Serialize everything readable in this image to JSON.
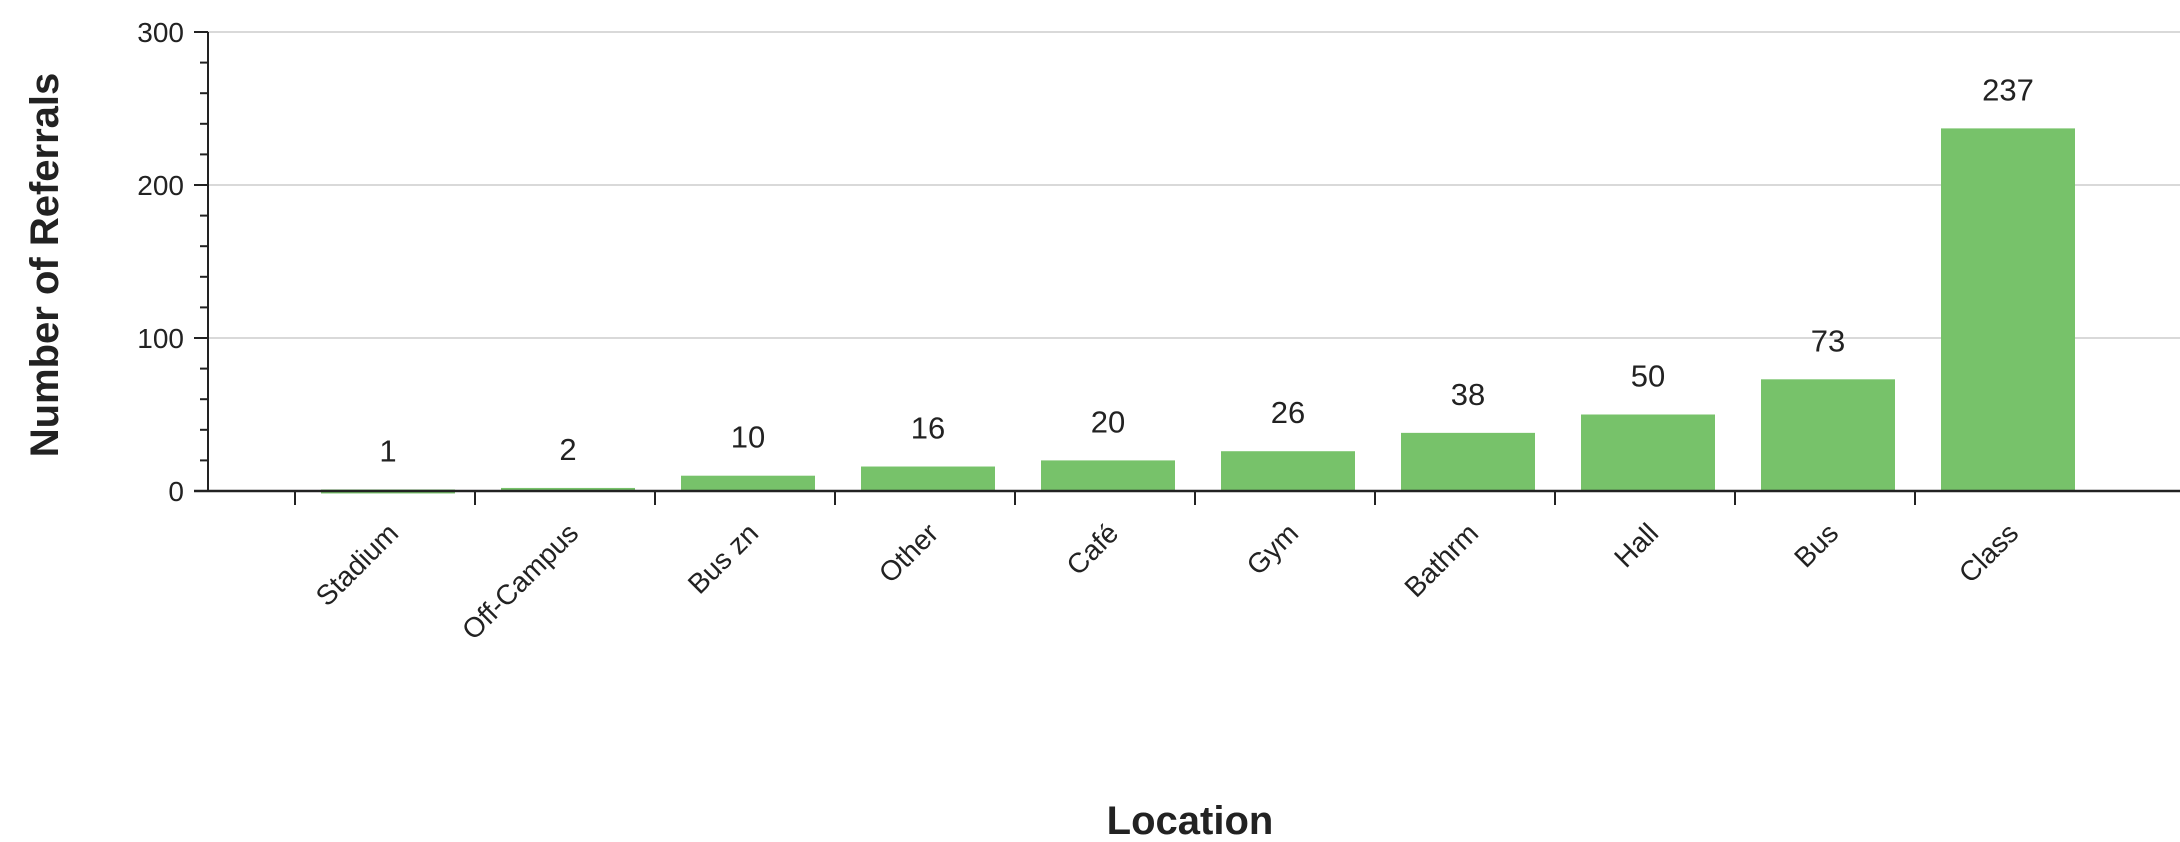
{
  "chart_data": {
    "type": "bar",
    "title": "",
    "xlabel": "Location",
    "ylabel": "Number of Referrals",
    "categories": [
      "Stadium",
      "Off-Campus",
      "Bus zn",
      "Other",
      "Café",
      "Gym",
      "Bathrm",
      "Hall",
      "Bus",
      "Class"
    ],
    "values": [
      1,
      2,
      10,
      16,
      20,
      26,
      38,
      50,
      73,
      237
    ],
    "data_labels": [
      "1",
      "2",
      "10",
      "16",
      "20",
      "26",
      "38",
      "50",
      "73",
      "237"
    ],
    "ylim": [
      0,
      300
    ],
    "yticks": [
      0,
      100,
      200,
      300
    ],
    "ytick_labels": [
      "0",
      "100",
      "200",
      "300"
    ],
    "grid": true,
    "legend": "none",
    "colors": {
      "bar": "#77c26a",
      "gridline": "#d9d9d9",
      "axis": "#222222"
    }
  }
}
